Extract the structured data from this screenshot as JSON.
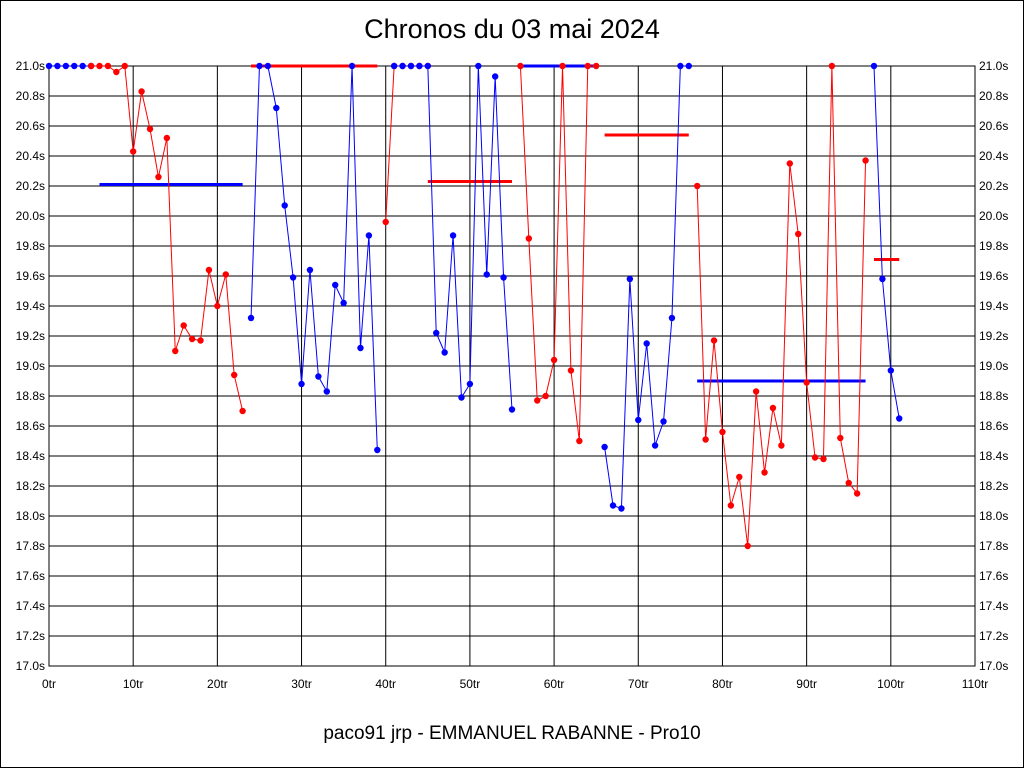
{
  "chart_data": {
    "type": "line",
    "title": "Chronos du 03 mai 2024",
    "footer": "paco91 jrp - EMMANUEL RABANNE - Pro10",
    "xlabel": "",
    "ylabel": "",
    "xlim": [
      0,
      110
    ],
    "ylim": [
      17.0,
      21.0
    ],
    "x_ticks": [
      0,
      10,
      20,
      30,
      40,
      50,
      60,
      70,
      80,
      90,
      100,
      110
    ],
    "x_tick_labels": [
      "0tr",
      "10tr",
      "20tr",
      "30tr",
      "40tr",
      "50tr",
      "60tr",
      "70tr",
      "80tr",
      "90tr",
      "100tr",
      "110tr"
    ],
    "y_ticks": [
      17.0,
      17.2,
      17.4,
      17.6,
      17.8,
      18.0,
      18.2,
      18.4,
      18.6,
      18.8,
      19.0,
      19.2,
      19.4,
      19.6,
      19.8,
      20.0,
      20.2,
      20.4,
      20.6,
      20.8,
      21.0
    ],
    "y_tick_labels": [
      "17.0s",
      "17.2s",
      "17.4s",
      "17.6s",
      "17.8s",
      "18.0s",
      "18.2s",
      "18.4s",
      "18.6s",
      "18.8s",
      "19.0s",
      "19.2s",
      "19.4s",
      "19.6s",
      "19.8s",
      "20.0s",
      "20.2s",
      "20.4s",
      "20.6s",
      "20.8s",
      "21.0s"
    ],
    "grid": true,
    "legend": "none",
    "colors": {
      "blue": "#0000ff",
      "red": "#ff0000"
    },
    "segments": [
      {
        "color": "blue",
        "points": [
          [
            0,
            21.0
          ],
          [
            1,
            21.0
          ],
          [
            2,
            21.0
          ],
          [
            3,
            21.0
          ],
          [
            4,
            21.0
          ],
          [
            5,
            21.0
          ]
        ]
      },
      {
        "color": "red",
        "points": [
          [
            5,
            21.0
          ],
          [
            6,
            21.0
          ],
          [
            7,
            21.0
          ],
          [
            8,
            20.96
          ],
          [
            9,
            21.0
          ],
          [
            10,
            20.43
          ],
          [
            11,
            20.83
          ],
          [
            12,
            20.58
          ],
          [
            13,
            20.26
          ],
          [
            14,
            20.52
          ],
          [
            15,
            19.1
          ],
          [
            16,
            19.27
          ],
          [
            17,
            19.18
          ],
          [
            18,
            19.17
          ],
          [
            19,
            19.64
          ],
          [
            20,
            19.4
          ],
          [
            21,
            19.61
          ],
          [
            22,
            18.94
          ],
          [
            23,
            18.7
          ]
        ]
      },
      {
        "color": "blue",
        "points": [
          [
            24,
            19.32
          ],
          [
            25,
            21.0
          ],
          [
            26,
            21.0
          ],
          [
            27,
            20.72
          ],
          [
            28,
            20.07
          ],
          [
            29,
            19.59
          ],
          [
            30,
            18.88
          ],
          [
            31,
            19.64
          ],
          [
            32,
            18.93
          ],
          [
            33,
            18.83
          ],
          [
            34,
            19.54
          ],
          [
            35,
            19.42
          ],
          [
            36,
            21.0
          ],
          [
            37,
            19.12
          ],
          [
            38,
            19.87
          ],
          [
            39,
            18.44
          ]
        ]
      },
      {
        "color": "red",
        "points": [
          [
            40,
            19.96
          ],
          [
            41,
            21.0
          ],
          [
            42,
            21.0
          ],
          [
            43,
            21.0
          ],
          [
            44,
            21.0
          ],
          [
            45,
            21.0
          ]
        ]
      },
      {
        "color": "blue",
        "points": [
          [
            41,
            21.0
          ],
          [
            42,
            21.0
          ],
          [
            43,
            21.0
          ],
          [
            44,
            21.0
          ],
          [
            45,
            21.0
          ],
          [
            46,
            19.22
          ],
          [
            47,
            19.09
          ],
          [
            48,
            19.87
          ],
          [
            49,
            18.79
          ],
          [
            50,
            18.88
          ],
          [
            51,
            21.0
          ],
          [
            52,
            19.61
          ],
          [
            53,
            20.93
          ],
          [
            54,
            19.59
          ],
          [
            55,
            18.71
          ]
        ]
      },
      {
        "color": "red",
        "points": [
          [
            56,
            21.0
          ],
          [
            57,
            19.85
          ],
          [
            58,
            18.77
          ],
          [
            59,
            18.8
          ],
          [
            60,
            19.04
          ],
          [
            61,
            21.0
          ],
          [
            62,
            18.97
          ],
          [
            63,
            18.5
          ],
          [
            64,
            21.0
          ],
          [
            65,
            21.0
          ]
        ]
      },
      {
        "color": "blue",
        "points": [
          [
            66,
            18.46
          ],
          [
            67,
            18.07
          ],
          [
            68,
            18.05
          ],
          [
            69,
            19.58
          ],
          [
            70,
            18.64
          ],
          [
            71,
            19.15
          ],
          [
            72,
            18.47
          ],
          [
            73,
            18.63
          ],
          [
            74,
            19.32
          ],
          [
            75,
            21.0
          ],
          [
            76,
            21.0
          ]
        ]
      },
      {
        "color": "red",
        "points": [
          [
            77,
            20.2
          ],
          [
            78,
            18.51
          ],
          [
            79,
            19.17
          ],
          [
            80,
            18.56
          ],
          [
            81,
            18.07
          ],
          [
            82,
            18.26
          ],
          [
            83,
            17.8
          ],
          [
            84,
            18.83
          ],
          [
            85,
            18.29
          ],
          [
            86,
            18.72
          ],
          [
            87,
            18.47
          ],
          [
            88,
            20.35
          ],
          [
            89,
            19.88
          ],
          [
            90,
            18.89
          ],
          [
            91,
            18.39
          ],
          [
            92,
            18.38
          ],
          [
            93,
            21.0
          ],
          [
            94,
            18.52
          ],
          [
            95,
            18.22
          ],
          [
            96,
            18.15
          ],
          [
            97,
            20.37
          ]
        ]
      },
      {
        "color": "blue",
        "points": [
          [
            98,
            21.0
          ],
          [
            99,
            19.58
          ],
          [
            100,
            18.97
          ],
          [
            101,
            18.65
          ]
        ]
      }
    ],
    "averages": [
      {
        "color": "blue",
        "x": [
          6,
          23
        ],
        "y": 20.21
      },
      {
        "color": "red",
        "x": [
          24,
          39
        ],
        "y": 21.0
      },
      {
        "color": "red",
        "x": [
          45,
          55
        ],
        "y": 20.23
      },
      {
        "color": "blue",
        "x": [
          56,
          65
        ],
        "y": 21.0
      },
      {
        "color": "red",
        "x": [
          66,
          76
        ],
        "y": 20.54
      },
      {
        "color": "blue",
        "x": [
          77,
          97
        ],
        "y": 18.9
      },
      {
        "color": "red",
        "x": [
          98,
          101
        ],
        "y": 19.71
      }
    ]
  }
}
